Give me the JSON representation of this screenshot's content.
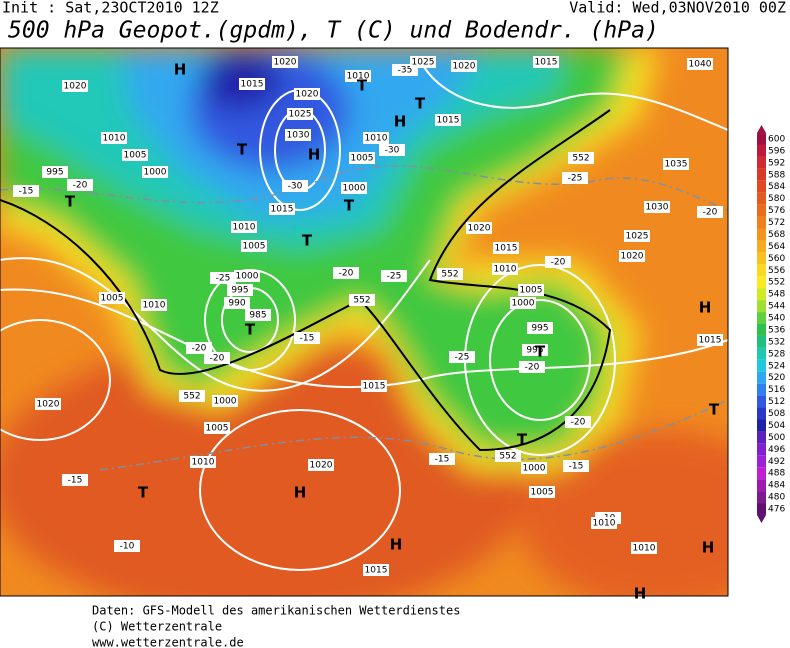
{
  "header": {
    "init": "Init : Sat,23OCT2010 12Z",
    "valid": "Valid: Wed,03NOV2010 00Z",
    "title": "500 hPa Geopot.(gpdm), T (C) und Bodendr. (hPa)"
  },
  "footer": {
    "lines": [
      "Daten: GFS-Modell des amerikanischen Wetterdienstes",
      "(C) Wetterzentrale",
      "www.wetterzentrale.de"
    ]
  },
  "colorbar": {
    "ticks": [
      600,
      596,
      592,
      588,
      584,
      580,
      576,
      572,
      568,
      564,
      560,
      556,
      552,
      548,
      544,
      540,
      536,
      532,
      528,
      524,
      520,
      516,
      512,
      508,
      504,
      500,
      496,
      492,
      488,
      484,
      480,
      476
    ],
    "colors": [
      "#a01040",
      "#c01838",
      "#d02a30",
      "#d83a28",
      "#e04a22",
      "#e45a20",
      "#ea6a1e",
      "#f0801c",
      "#f4941e",
      "#f8aa20",
      "#fcc020",
      "#fcd820",
      "#f8ec20",
      "#d0ec20",
      "#a0e030",
      "#60d040",
      "#30c050",
      "#20c080",
      "#20c8b0",
      "#20c8e0",
      "#30a8f0",
      "#3080f0",
      "#3058e0",
      "#2838c8",
      "#2020a8",
      "#6020c0",
      "#8020d0",
      "#a020d8",
      "#c020d0",
      "#a018b0",
      "#801890",
      "#601070"
    ]
  },
  "isobar_labels": [
    "1020",
    "1015",
    "1010",
    "-35",
    "1025",
    "1020",
    "1015",
    "1040",
    "1020",
    "1020",
    "1025",
    "1030",
    "1010",
    "1005",
    "1000",
    "995",
    "-15",
    "-20",
    "-30",
    "1015",
    "1010",
    "1005",
    "1000",
    "1005",
    "1010",
    "-30",
    "1015",
    "-25",
    "1035",
    "1030",
    "-20",
    "1025",
    "1020",
    "1020",
    "1015",
    "1010",
    "-20",
    "-25",
    "-20",
    "-25",
    "1000",
    "995",
    "990",
    "985",
    "-20",
    "-20",
    "-15",
    "1005",
    "1010",
    "1005",
    "1000",
    "995",
    "995",
    "-25",
    "-20",
    "1015",
    "1015",
    "1000",
    "1005",
    "1020",
    "-20",
    "-15",
    "-15",
    "1000",
    "1005",
    "1010",
    "1020",
    "-15",
    "-10",
    "-10",
    "1010",
    "1010",
    "1015",
    "552",
    "552",
    "552",
    "552",
    "552"
  ],
  "pressure_centers": [
    "H",
    "T",
    "T",
    "H",
    "T",
    "H",
    "T",
    "T",
    "T",
    "T",
    "T",
    "T",
    "H",
    "T",
    "T",
    "H",
    "H",
    "H",
    "H"
  ]
}
